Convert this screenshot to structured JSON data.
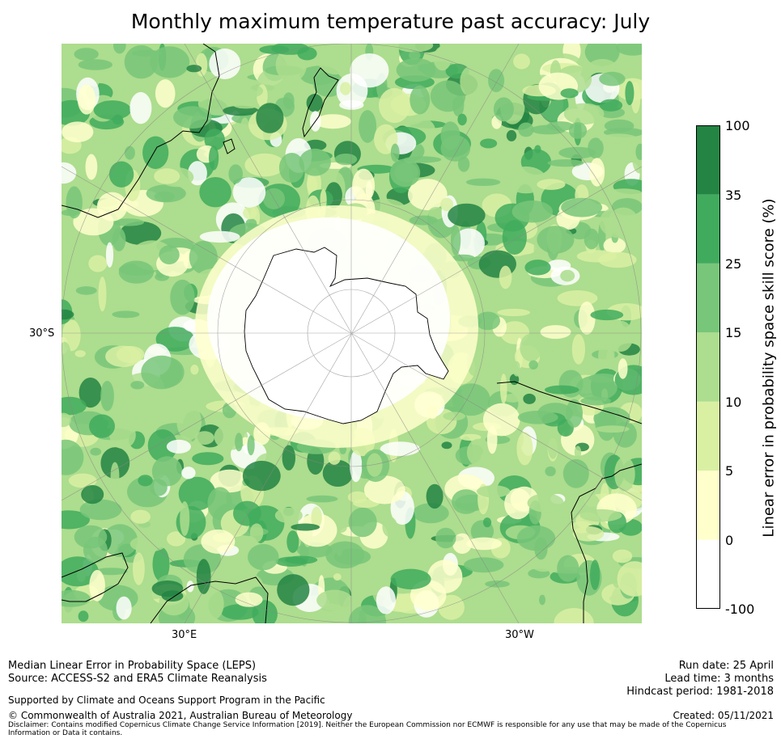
{
  "title": "Monthly maximum temperature past accuracy: July",
  "map": {
    "projection": "south polar stereographic",
    "lon_labels": [
      "30°E",
      "30°W"
    ],
    "lat_labels": [
      "30°S"
    ]
  },
  "colorbar": {
    "label": "Linear error in probability space skill score (%)",
    "ticks": [
      "100",
      "35",
      "25",
      "15",
      "10",
      "5",
      "0",
      "-100"
    ],
    "colors": [
      "#ffffff",
      "#ffffcc",
      "#d9f0a3",
      "#addd8e",
      "#78c679",
      "#41ab5d",
      "#238443"
    ]
  },
  "footer": {
    "line1": "Median Linear Error in Probability Space (LEPS)",
    "line2": "Source: ACCESS-S2 and ERA5 Climate Reanalysis",
    "supported": "Supported by Climate and Oceans Support Program in the Pacific",
    "copyright": "© Commonwealth of Australia 2021, Australian Bureau of Meteorology",
    "disclaimer": "Disclaimer: Contains modified Copernicus Climate Change Service Information [2019]. Neither the European Commission nor ECMWF is responsible for any use that may be made of the Copernicus Information or Data it contains.",
    "run_date": "Run date: 25 April",
    "lead_time": "Lead time: 3 months",
    "hindcast": "Hindcast period: 1981-2018",
    "created": "Created: 05/11/2021"
  }
}
